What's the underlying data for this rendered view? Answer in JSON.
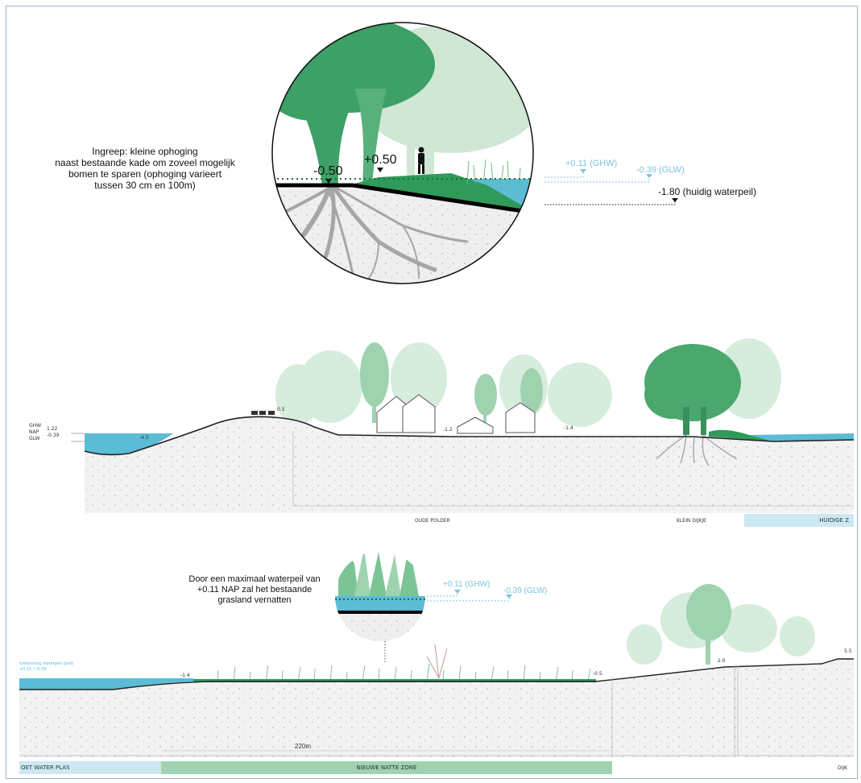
{
  "top_callout": {
    "text_lines": [
      "Ingreep: kleine ophoging",
      "naast bestaande kade om zoveel mogelijk",
      "bomen te sparen (ophoging varieert",
      "tussen 30 cm en 100m)"
    ],
    "level_minus": "-0.50",
    "level_plus": "+0.50",
    "ghw": "+0.11 (GHW)",
    "glw": "-0.39 (GLW)",
    "current_water": "-1.80 (huidig waterpeil)"
  },
  "section1": {
    "left_labels": [
      "GHW",
      "NAP",
      "GLW"
    ],
    "left_values": [
      "1.22",
      "-0.39"
    ],
    "spot_levels": [
      "-4.5",
      "0.5",
      "-1.2",
      "-1.4"
    ],
    "zone_labels": [
      "OUDE POLDER",
      "KLEIN DIJKJE",
      "HUIDIGE Z"
    ]
  },
  "bottom_callout": {
    "text_lines": [
      "Door een maximaal waterpeil van",
      "+0.11 NAP zal het bestaande",
      "grasland vernatten"
    ],
    "ghw": "+0.11 (GHW)",
    "glw": "-0.39 (GLW)"
  },
  "section2": {
    "water_label_lines": [
      "toekomstig waterpeil (peil)",
      "+0.11 / -0.39"
    ],
    "spot_levels": [
      "-1.4",
      "-0.5",
      "2.0",
      "5.5"
    ],
    "distance": "220m",
    "zone_labels": [
      "OET WATER PLAS",
      "NIEUWE NATTE ZONE",
      "DIJK"
    ]
  },
  "colors": {
    "water": "#5bbcd6",
    "water_light": "#cfe9f2",
    "green_dark": "#2f9a5a",
    "green_mid": "#5fb27c",
    "green_light": "#bfe2c9",
    "zone_green": "#9fd3b0",
    "zone_blue": "#cce9f3",
    "root_grey": "#a0a0a0"
  }
}
